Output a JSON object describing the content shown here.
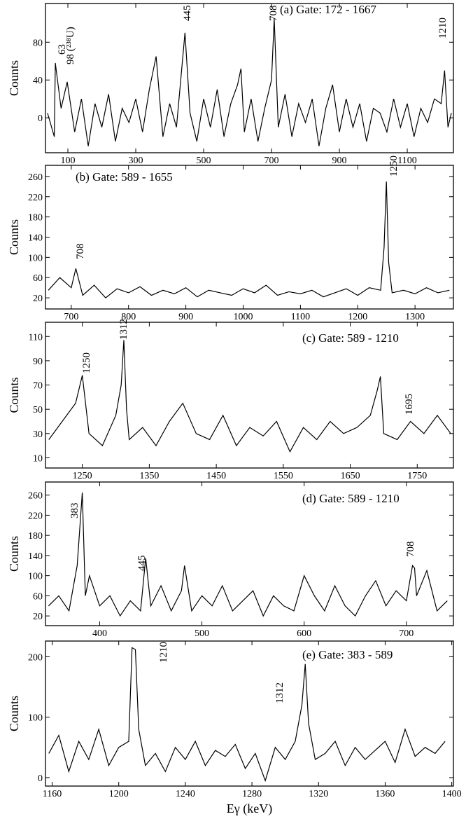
{
  "chart_data": [
    {
      "type": "line",
      "title": "(a) Gate: 172 - 1667",
      "y_label": "Counts",
      "color": "#000000",
      "x": [
        40,
        60,
        63,
        80,
        98,
        120,
        140,
        160,
        180,
        200,
        220,
        240,
        260,
        280,
        300,
        320,
        340,
        360,
        380,
        400,
        420,
        445,
        460,
        480,
        500,
        520,
        540,
        560,
        580,
        600,
        610,
        620,
        640,
        660,
        680,
        700,
        708,
        720,
        740,
        760,
        780,
        800,
        820,
        840,
        860,
        880,
        900,
        920,
        940,
        960,
        980,
        1000,
        1020,
        1040,
        1060,
        1080,
        1100,
        1120,
        1140,
        1160,
        1180,
        1200,
        1210,
        1220,
        1230
      ],
      "values": [
        5,
        -20,
        58,
        10,
        38,
        -15,
        20,
        -30,
        15,
        -10,
        25,
        -25,
        10,
        -5,
        20,
        -15,
        30,
        65,
        -20,
        15,
        -10,
        90,
        5,
        -25,
        20,
        -10,
        30,
        -20,
        15,
        35,
        52,
        -15,
        20,
        -25,
        10,
        40,
        105,
        -10,
        25,
        -20,
        15,
        -5,
        20,
        -30,
        10,
        35,
        -15,
        20,
        -10,
        15,
        -25,
        10,
        5,
        -15,
        20,
        -10,
        15,
        -20,
        10,
        -5,
        20,
        15,
        50,
        -10,
        5
      ],
      "xlim": [
        34,
        1236
      ],
      "xticks": [
        100,
        300,
        500,
        700,
        900,
        1100
      ],
      "ylim": [
        -37,
        121
      ],
      "yticks": [
        0,
        40,
        80
      ],
      "annotations": [
        "63",
        "98 (²³⁸U)",
        "445",
        "708",
        "1210"
      ]
    },
    {
      "type": "line",
      "title": "(b) Gate: 589 - 1655",
      "y_label": "Counts",
      "color": "#000000",
      "x": [
        660,
        680,
        700,
        708,
        720,
        740,
        760,
        780,
        800,
        820,
        840,
        860,
        880,
        900,
        920,
        940,
        960,
        980,
        1000,
        1020,
        1040,
        1060,
        1080,
        1100,
        1120,
        1140,
        1160,
        1180,
        1200,
        1220,
        1240,
        1246,
        1250,
        1254,
        1260,
        1280,
        1300,
        1320,
        1340,
        1360
      ],
      "values": [
        35,
        60,
        40,
        78,
        25,
        45,
        20,
        38,
        30,
        42,
        25,
        35,
        28,
        40,
        22,
        35,
        30,
        25,
        38,
        30,
        45,
        25,
        32,
        28,
        35,
        22,
        30,
        38,
        25,
        40,
        35,
        120,
        250,
        90,
        30,
        35,
        28,
        40,
        30,
        35
      ],
      "xlim": [
        655,
        1367
      ],
      "xticks": [
        700,
        800,
        900,
        1000,
        1100,
        1200,
        1300
      ],
      "ylim": [
        -2,
        282
      ],
      "yticks": [
        20,
        60,
        100,
        140,
        180,
        220,
        260
      ],
      "annotations": [
        "708",
        "1250"
      ]
    },
    {
      "type": "line",
      "title": "(c) Gate: 589 - 1210",
      "y_label": "Counts",
      "color": "#000000",
      "x": [
        1200,
        1220,
        1240,
        1250,
        1260,
        1280,
        1300,
        1308,
        1312,
        1316,
        1320,
        1340,
        1360,
        1380,
        1400,
        1420,
        1440,
        1460,
        1480,
        1500,
        1520,
        1540,
        1560,
        1580,
        1600,
        1620,
        1640,
        1660,
        1680,
        1690,
        1695,
        1700,
        1720,
        1740,
        1760,
        1780,
        1800
      ],
      "values": [
        25,
        40,
        55,
        78,
        30,
        20,
        45,
        70,
        107,
        50,
        25,
        35,
        20,
        40,
        55,
        30,
        25,
        45,
        20,
        35,
        28,
        40,
        15,
        35,
        25,
        40,
        30,
        35,
        45,
        65,
        77,
        30,
        25,
        40,
        30,
        45,
        30
      ],
      "xlim": [
        1195,
        1804
      ],
      "xticks": [
        1250,
        1350,
        1450,
        1550,
        1650,
        1750
      ],
      "ylim": [
        1.6,
        121.7
      ],
      "yticks": [
        10,
        30,
        50,
        70,
        90,
        110
      ],
      "annotations": [
        "1250",
        "1312",
        "1695"
      ]
    },
    {
      "type": "line",
      "title": "(d) Gate: 589 - 1210",
      "y_label": "Counts",
      "color": "#000000",
      "x": [
        350,
        360,
        370,
        378,
        383,
        386,
        390,
        400,
        410,
        420,
        430,
        440,
        445,
        450,
        460,
        470,
        480,
        483,
        490,
        500,
        510,
        520,
        530,
        540,
        550,
        560,
        570,
        580,
        590,
        600,
        610,
        620,
        630,
        640,
        650,
        660,
        670,
        680,
        690,
        700,
        706,
        708,
        710,
        720,
        730,
        740
      ],
      "values": [
        40,
        60,
        30,
        120,
        265,
        60,
        100,
        40,
        60,
        20,
        50,
        30,
        135,
        40,
        80,
        30,
        70,
        120,
        30,
        60,
        40,
        80,
        30,
        50,
        70,
        20,
        60,
        40,
        30,
        100,
        60,
        30,
        80,
        40,
        20,
        60,
        90,
        40,
        70,
        50,
        120,
        115,
        60,
        110,
        30,
        50
      ],
      "xlim": [
        347,
        746
      ],
      "xticks": [
        400,
        500,
        600,
        700
      ],
      "ylim": [
        0.7,
        286
      ],
      "yticks": [
        20,
        60,
        100,
        140,
        180,
        220,
        260
      ],
      "annotations": [
        "383",
        "445",
        "708"
      ]
    },
    {
      "type": "line",
      "title": "(e) Gate: 383 - 589",
      "y_label": "Counts",
      "x_label": "Eγ (keV)",
      "color": "#000000",
      "x": [
        1158,
        1164,
        1170,
        1176,
        1182,
        1188,
        1194,
        1200,
        1206,
        1208,
        1210,
        1212,
        1216,
        1222,
        1228,
        1234,
        1240,
        1246,
        1252,
        1258,
        1264,
        1270,
        1276,
        1282,
        1288,
        1294,
        1300,
        1306,
        1310,
        1312,
        1314,
        1318,
        1324,
        1330,
        1336,
        1342,
        1348,
        1354,
        1360,
        1366,
        1372,
        1378,
        1384,
        1390,
        1396
      ],
      "values": [
        40,
        70,
        10,
        60,
        30,
        80,
        20,
        50,
        60,
        215,
        212,
        80,
        20,
        40,
        10,
        50,
        30,
        60,
        20,
        45,
        35,
        55,
        15,
        40,
        -5,
        50,
        30,
        60,
        120,
        188,
        90,
        30,
        40,
        60,
        20,
        50,
        30,
        45,
        60,
        25,
        80,
        35,
        50,
        40,
        60
      ],
      "xlim": [
        1156,
        1401
      ],
      "xticks": [
        1160,
        1200,
        1240,
        1280,
        1320,
        1360,
        1400
      ],
      "ylim": [
        -14,
        226
      ],
      "yticks": [
        0,
        100,
        200
      ],
      "annotations": [
        "1210",
        "1312"
      ]
    }
  ]
}
